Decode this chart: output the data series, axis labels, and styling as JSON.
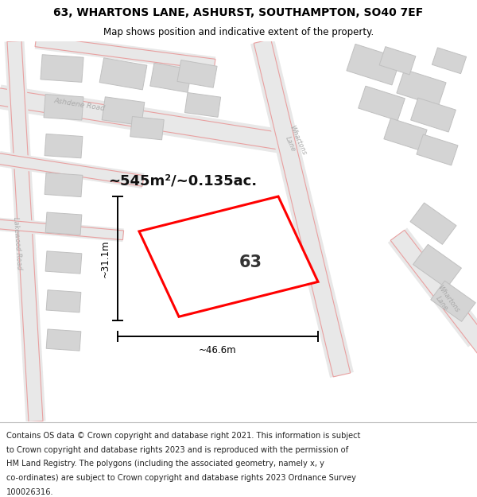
{
  "title_line1": "63, WHARTONS LANE, ASHURST, SOUTHAMPTON, SO40 7EF",
  "title_line2": "Map shows position and indicative extent of the property.",
  "footer_lines": [
    "Contains OS data © Crown copyright and database right 2021. This information is subject",
    "to Crown copyright and database rights 2023 and is reproduced with the permission of",
    "HM Land Registry. The polygons (including the associated geometry, namely x, y",
    "co-ordinates) are subject to Crown copyright and database rights 2023 Ordnance Survey",
    "100026316."
  ],
  "map_bg_color": "#eeeeee",
  "title_bg_color": "#ffffff",
  "footer_bg_color": "#ffffff",
  "plot_color": "#ff0000",
  "dim_color": "#000000",
  "road_fill": "#e8e8e8",
  "road_edge": "#e8a0a0",
  "building_fill": "#d4d4d4",
  "building_edge": "#c0c0c0",
  "road_label_color": "#aaaaaa",
  "area_text": "~545m²/~0.135ac.",
  "number_text": "63",
  "width_text": "~46.6m",
  "height_text": "~31.1m"
}
